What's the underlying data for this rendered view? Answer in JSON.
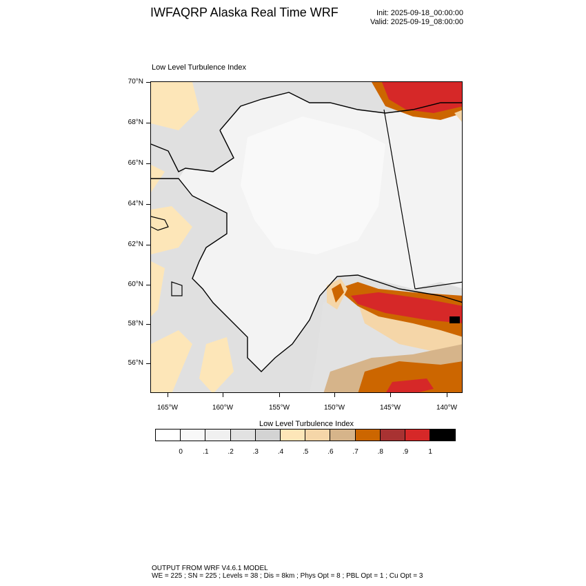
{
  "header": {
    "title": "IWFAQRP Alaska Real Time WRF",
    "init": "Init: 2025-09-18_00:00:00",
    "valid": "Valid: 2025-09-19_08:00:00"
  },
  "map": {
    "title": "Low Level Turbulence Index",
    "lat_labels": [
      "70°N",
      "68°N",
      "66°N",
      "64°N",
      "62°N",
      "60°N",
      "58°N",
      "56°N"
    ],
    "lon_labels": [
      "165°W",
      "160°W",
      "155°W",
      "150°W",
      "145°W",
      "140°W"
    ]
  },
  "colorbar": {
    "title": "Low Level Turbulence Index",
    "labels": [
      "0",
      ".1",
      ".2",
      ".3",
      ".4",
      ".5",
      ".6",
      ".7",
      ".8",
      ".9",
      "1"
    ],
    "colors": [
      "#ffffff",
      "#f8f8f8",
      "#f0f0f0",
      "#e2e2e2",
      "#d3d3d3",
      "#fde6b8",
      "#f5d6a8",
      "#d6b48a",
      "#cc6600",
      "#a83232",
      "#d62828",
      "#000000"
    ]
  },
  "footer": {
    "line1": "OUTPUT FROM WRF V4.6.1 MODEL",
    "line2": "WE = 225 ; SN = 225 ; Levels = 38 ; Dis = 8km ; Phys Opt = 8 ; PBL Opt = 1 ; Cu Opt = 3"
  }
}
